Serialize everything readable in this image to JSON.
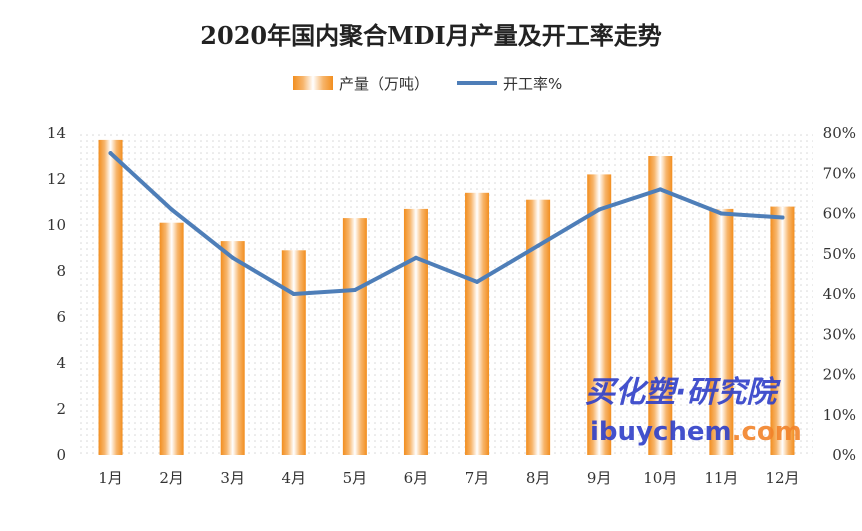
{
  "chart_data": {
    "type": "bar+line",
    "title": "2020年国内聚合MDI月产量及开工率走势",
    "categories": [
      "1月",
      "2月",
      "3月",
      "4月",
      "5月",
      "6月",
      "7月",
      "8月",
      "9月",
      "10月",
      "11月",
      "12月"
    ],
    "series": [
      {
        "name": "产量（万吨）",
        "type": "bar",
        "axis": "left",
        "values": [
          13.7,
          10.1,
          9.3,
          8.9,
          10.3,
          10.7,
          11.4,
          11.1,
          12.2,
          13.0,
          10.7,
          10.8
        ],
        "color": "#F28E1F"
      },
      {
        "name": "开工率%",
        "type": "line",
        "axis": "right",
        "values": [
          75,
          61,
          49,
          40,
          41,
          49,
          43,
          52,
          61,
          66,
          60,
          59
        ],
        "color": "#4E7EB8"
      }
    ],
    "y_left": {
      "min": 0,
      "max": 14,
      "ticks": [
        "0",
        "2",
        "4",
        "6",
        "8",
        "10",
        "12",
        "14"
      ]
    },
    "y_right": {
      "min": 0,
      "max": 80,
      "ticks": [
        "0%",
        "10%",
        "20%",
        "30%",
        "40%",
        "50%",
        "60%",
        "70%",
        "80%"
      ]
    },
    "legend_position": "top-center",
    "watermark": {
      "text_cn": "买化塑·研究院",
      "text_en_1": "ibuychem",
      "text_en_2": ".com"
    }
  }
}
